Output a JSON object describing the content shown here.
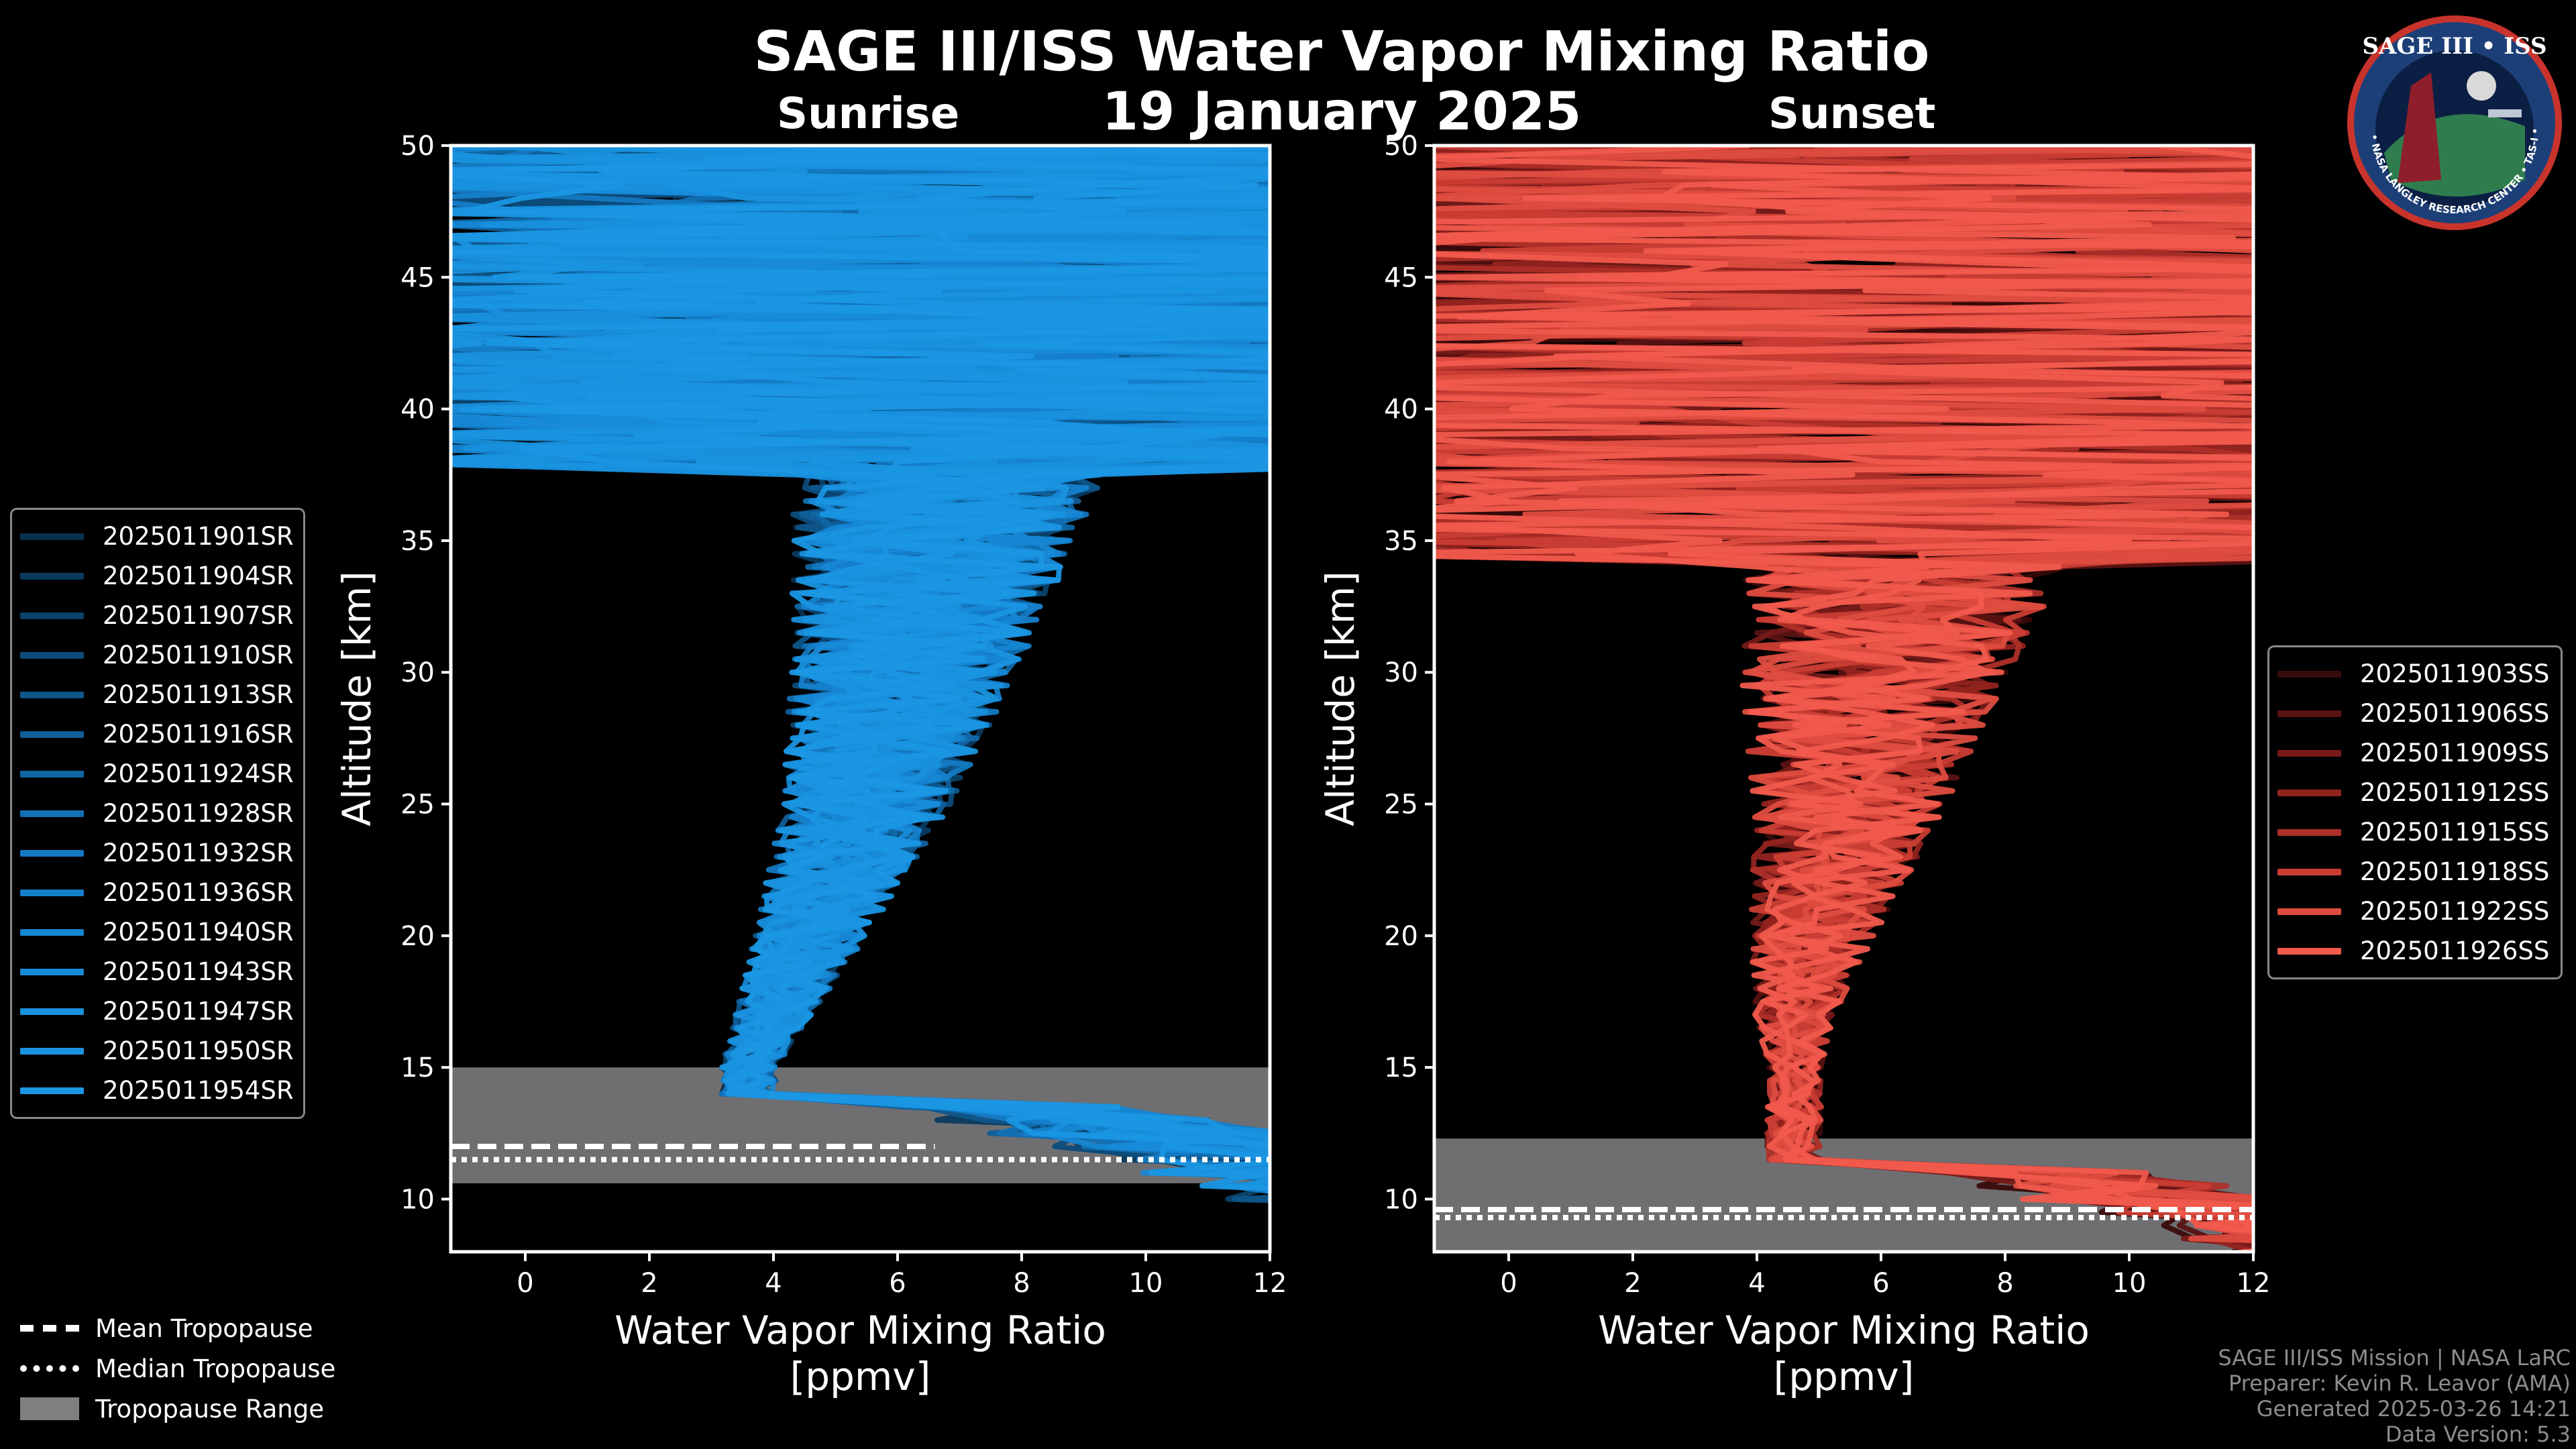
{
  "title": "SAGE III/ISS Water Vapor Mixing Ratio",
  "date": "19 January 2025",
  "logo": {
    "text": "SAGE III • ISS",
    "ring_text": "BALL • NASA LANGLEY RESEARCH CENTER • TAS-I • ESA"
  },
  "chart_data": [
    {
      "type": "line",
      "panel": "Sunrise",
      "xlabel": "Water Vapor Mixing Ratio\n[ppmv]",
      "xlabel_line1": "Water Vapor Mixing Ratio",
      "xlabel_line2": "[ppmv]",
      "ylabel": "Altitude [km]",
      "xlim": [
        -1.2,
        12
      ],
      "ylim": [
        8,
        50
      ],
      "xticks": [
        0,
        2,
        4,
        6,
        8,
        10,
        12
      ],
      "yticks": [
        10,
        15,
        20,
        25,
        30,
        35,
        40,
        45,
        50
      ],
      "tropopause": {
        "mean": 12.0,
        "median": 11.5,
        "range": [
          10.6,
          15.0
        ]
      },
      "profile_shape": {
        "stratosphere_center": [
          [
            15,
            3.6
          ],
          [
            20,
            4.6
          ],
          [
            25,
            5.5
          ],
          [
            30,
            6.1
          ],
          [
            35,
            6.6
          ],
          [
            40,
            7.0
          ],
          [
            45,
            7.2
          ]
        ],
        "spread_low": 0.8,
        "spread_high": 5.0,
        "noisy_above_km": 37.5
      },
      "series_names": [
        "2025011901SR",
        "2025011904SR",
        "2025011907SR",
        "2025011910SR",
        "2025011913SR",
        "2025011916SR",
        "2025011924SR",
        "2025011928SR",
        "2025011932SR",
        "2025011936SR",
        "2025011940SR",
        "2025011943SR",
        "2025011947SR",
        "2025011950SR",
        "2025011954SR"
      ],
      "series_colors": [
        "#08314f",
        "#0a3a5e",
        "#0b436c",
        "#0d4c7b",
        "#0e5589",
        "#105e98",
        "#1167a6",
        "#1270b4",
        "#1479c2",
        "#1580cb",
        "#1686d3",
        "#178bd8",
        "#1890dc",
        "#1993df",
        "#1a96e3"
      ]
    },
    {
      "type": "line",
      "panel": "Sunset",
      "xlabel": "Water Vapor Mixing Ratio\n[ppmv]",
      "xlabel_line1": "Water Vapor Mixing Ratio",
      "xlabel_line2": "[ppmv]",
      "ylabel": "Altitude [km]",
      "xlim": [
        -1.2,
        12
      ],
      "ylim": [
        8,
        50
      ],
      "xticks": [
        0,
        2,
        4,
        6,
        8,
        10,
        12
      ],
      "yticks": [
        10,
        15,
        20,
        25,
        30,
        35,
        40,
        45,
        50
      ],
      "tropopause": {
        "mean": 9.6,
        "median": 9.3,
        "range": [
          8.0,
          12.3
        ]
      },
      "profile_shape": {
        "stratosphere_center": [
          [
            13,
            4.6
          ],
          [
            17,
            4.6
          ],
          [
            20,
            4.9
          ],
          [
            25,
            5.5
          ],
          [
            30,
            5.9
          ],
          [
            35,
            6.5
          ],
          [
            40,
            7.0
          ],
          [
            45,
            7.5
          ]
        ],
        "spread_low": 0.8,
        "spread_high": 6.0,
        "noisy_above_km": 34.0
      },
      "series_names": [
        "2025011903SS",
        "2025011906SS",
        "2025011909SS",
        "2025011912SS",
        "2025011915SS",
        "2025011918SS",
        "2025011922SS",
        "2025011926SS"
      ],
      "series_colors": [
        "#3a0b0b",
        "#581212",
        "#751a19",
        "#92231f",
        "#ae2f28",
        "#c93d34",
        "#de4c40",
        "#f05a4c"
      ]
    }
  ],
  "tropopause_legend": [
    "Mean Tropopause",
    "Median Tropopause",
    "Tropopause Range"
  ],
  "credits": [
    "SAGE III/ISS Mission | NASA LaRC",
    "Preparer: Kevin R. Leavor (AMA)",
    "Generated 2025-03-26 14:21",
    "Data Version: 5.3"
  ]
}
